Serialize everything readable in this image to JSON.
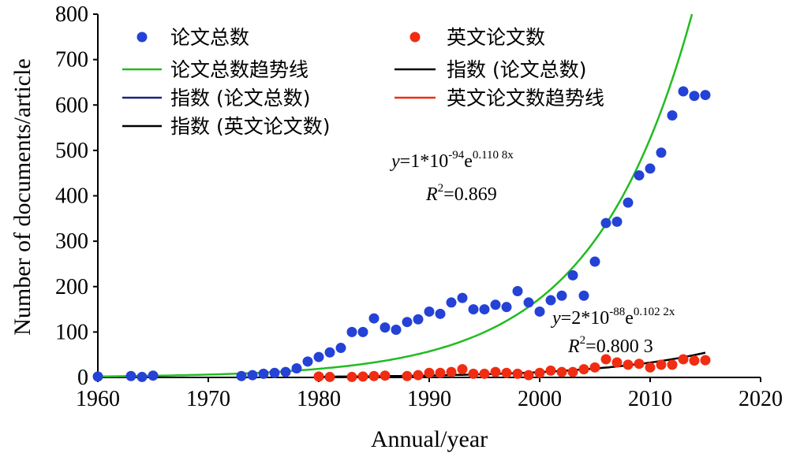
{
  "chart_data": {
    "type": "scatter",
    "xlabel": "Annual/year",
    "ylabel": "Number of documents/article",
    "xlim": [
      1960,
      2020
    ],
    "ylim": [
      0,
      800
    ],
    "xticks": [
      "1960",
      "1970",
      "1980",
      "1990",
      "2000",
      "2010",
      "2020"
    ],
    "yticks": [
      "0",
      "100",
      "200",
      "300",
      "400",
      "500",
      "600",
      "700",
      "800"
    ],
    "legend_position": "top",
    "colors": {
      "total": "#2442d6",
      "english": "#f02d12",
      "trend_total": "#22bb22",
      "index_black": "#000000",
      "index_blue": "#1a237e",
      "trend_english": "#f02d12"
    },
    "legend": {
      "total": "论文总数",
      "english": "英文论文数",
      "trend_total": "论文总数趋势线",
      "index_total_black": "指数 (论文总数)",
      "index_total_blue": "指数 (论文总数)",
      "trend_english": "英文论文数趋势线",
      "index_english": "指数 (英文论文数)"
    },
    "equations": {
      "total": {
        "y_prefix": "y",
        "body": "=1*10",
        "exp1": "-94",
        "e": "e",
        "exp2": "0.110 8x",
        "r2_prefix": "R",
        "r2_sup": "2",
        "r2_value": "=0.869"
      },
      "english": {
        "y_prefix": "y",
        "body": "=2*10",
        "exp1": "-88",
        "e": "e",
        "exp2": "0.102 2x",
        "r2_prefix": "R",
        "r2_sup": "2",
        "r2_value": "=0.800 3"
      }
    },
    "series": [
      {
        "name": "论文总数",
        "points": [
          [
            1960,
            2
          ],
          [
            1963,
            3
          ],
          [
            1964,
            1
          ],
          [
            1965,
            4
          ],
          [
            1973,
            3
          ],
          [
            1974,
            5
          ],
          [
            1975,
            8
          ],
          [
            1976,
            10
          ],
          [
            1977,
            12
          ],
          [
            1978,
            20
          ],
          [
            1979,
            35
          ],
          [
            1980,
            45
          ],
          [
            1981,
            55
          ],
          [
            1982,
            65
          ],
          [
            1983,
            100
          ],
          [
            1984,
            100
          ],
          [
            1985,
            130
          ],
          [
            1986,
            110
          ],
          [
            1987,
            105
          ],
          [
            1988,
            122
          ],
          [
            1989,
            128
          ],
          [
            1990,
            145
          ],
          [
            1991,
            140
          ],
          [
            1992,
            165
          ],
          [
            1993,
            175
          ],
          [
            1994,
            150
          ],
          [
            1995,
            150
          ],
          [
            1996,
            160
          ],
          [
            1997,
            155
          ],
          [
            1998,
            190
          ],
          [
            1999,
            165
          ],
          [
            2000,
            145
          ],
          [
            2001,
            170
          ],
          [
            2002,
            180
          ],
          [
            2003,
            225
          ],
          [
            2004,
            180
          ],
          [
            2005,
            255
          ],
          [
            2006,
            340
          ],
          [
            2007,
            343
          ],
          [
            2008,
            385
          ],
          [
            2009,
            445
          ],
          [
            2010,
            460
          ],
          [
            2011,
            495
          ],
          [
            2012,
            577
          ],
          [
            2013,
            630
          ],
          [
            2014,
            620
          ],
          [
            2015,
            622
          ]
        ]
      },
      {
        "name": "英文论文数",
        "points": [
          [
            1980,
            2
          ],
          [
            1981,
            1
          ],
          [
            1983,
            1
          ],
          [
            1984,
            2
          ],
          [
            1985,
            3
          ],
          [
            1986,
            4
          ],
          [
            1988,
            3
          ],
          [
            1989,
            5
          ],
          [
            1990,
            10
          ],
          [
            1991,
            10
          ],
          [
            1992,
            12
          ],
          [
            1993,
            18
          ],
          [
            1994,
            8
          ],
          [
            1995,
            8
          ],
          [
            1996,
            12
          ],
          [
            1997,
            10
          ],
          [
            1998,
            8
          ],
          [
            1999,
            5
          ],
          [
            2000,
            10
          ],
          [
            2001,
            15
          ],
          [
            2002,
            12
          ],
          [
            2003,
            12
          ],
          [
            2004,
            18
          ],
          [
            2005,
            22
          ],
          [
            2006,
            40
          ],
          [
            2007,
            33
          ],
          [
            2008,
            28
          ],
          [
            2009,
            30
          ],
          [
            2010,
            22
          ],
          [
            2011,
            28
          ],
          [
            2012,
            28
          ],
          [
            2013,
            40
          ],
          [
            2014,
            37
          ],
          [
            2015,
            38
          ]
        ]
      }
    ]
  }
}
